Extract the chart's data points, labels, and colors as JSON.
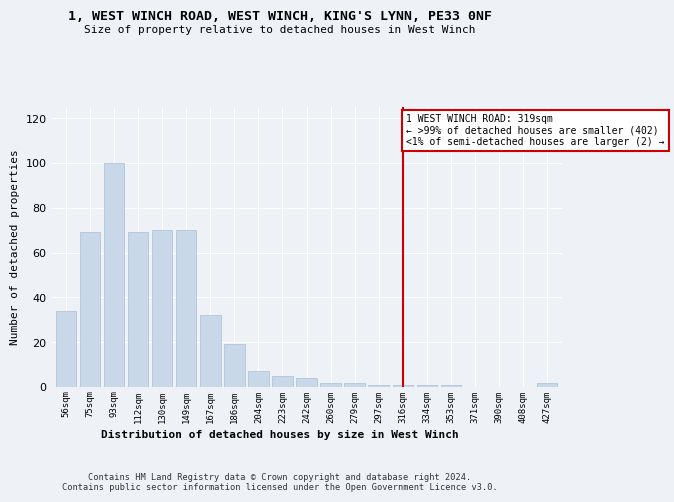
{
  "title": "1, WEST WINCH ROAD, WEST WINCH, KING'S LYNN, PE33 0NF",
  "subtitle": "Size of property relative to detached houses in West Winch",
  "xlabel": "Distribution of detached houses by size in West Winch",
  "ylabel": "Number of detached properties",
  "bar_color": "#c8d8e8",
  "bar_edge_color": "#a8c0d8",
  "background_color": "#eef2f7",
  "grid_color": "#ffffff",
  "categories": [
    "56sqm",
    "75sqm",
    "93sqm",
    "112sqm",
    "130sqm",
    "149sqm",
    "167sqm",
    "186sqm",
    "204sqm",
    "223sqm",
    "242sqm",
    "260sqm",
    "279sqm",
    "297sqm",
    "316sqm",
    "334sqm",
    "353sqm",
    "371sqm",
    "390sqm",
    "408sqm",
    "427sqm"
  ],
  "values": [
    34,
    69,
    100,
    69,
    70,
    70,
    32,
    19,
    7,
    5,
    4,
    2,
    2,
    1,
    1,
    1,
    1,
    0,
    0,
    0,
    2
  ],
  "ylim": [
    0,
    125
  ],
  "yticks": [
    0,
    20,
    40,
    60,
    80,
    100,
    120
  ],
  "annotation_text": "1 WEST WINCH ROAD: 319sqm\n← >99% of detached houses are smaller (402)\n<1% of semi-detached houses are larger (2) →",
  "annotation_box_color": "#ffffff",
  "annotation_box_edge_color": "#cc0000",
  "vline_color": "#cc0000",
  "footer_text": "Contains HM Land Registry data © Crown copyright and database right 2024.\nContains public sector information licensed under the Open Government Licence v3.0."
}
